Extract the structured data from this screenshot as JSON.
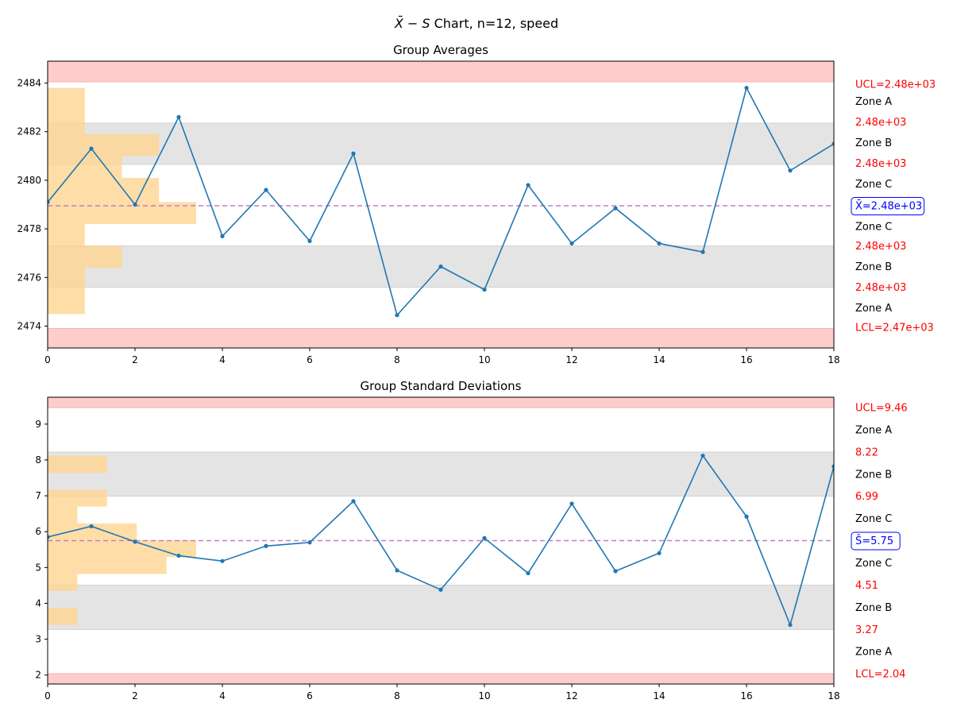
{
  "figure": {
    "title_prefix": "X̄ − S",
    "title_suffix": " Chart, n=12, speed"
  },
  "colors": {
    "line": "#1f77b4",
    "center": "#c080c0",
    "limit_band": "#ffcccc",
    "zone_b_band": "#e4e4e4",
    "hist": "#ffd591",
    "limit_text": "#ff0000",
    "center_text": "#0000ff"
  },
  "chart_data": [
    {
      "type": "line",
      "title": "Group Averages",
      "xlim": [
        0,
        18
      ],
      "ylim": [
        2473.1,
        2484.9
      ],
      "xticks": [
        0,
        2,
        4,
        6,
        8,
        10,
        12,
        14,
        16,
        18
      ],
      "yticks": [
        2474,
        2476,
        2478,
        2480,
        2482,
        2484
      ],
      "x": [
        0,
        1,
        2,
        3,
        4,
        5,
        6,
        7,
        8,
        9,
        10,
        11,
        12,
        13,
        14,
        15,
        16,
        17,
        18
      ],
      "values": [
        2479.1,
        2481.3,
        2479.0,
        2482.6,
        2477.7,
        2479.6,
        2477.5,
        2481.1,
        2474.45,
        2476.45,
        2475.5,
        2479.8,
        2477.4,
        2478.85,
        2477.4,
        2477.05,
        2483.8,
        2480.4,
        2481.5
      ],
      "center": 2478.95,
      "limits": [
        2473.9,
        2475.6,
        2477.3,
        2478.95,
        2480.65,
        2482.35,
        2484.05
      ],
      "histogram": [
        {
          "y0": 2474.5,
          "y1": 2476.4,
          "count": 1
        },
        {
          "y0": 2476.4,
          "y1": 2477.3,
          "count": 2
        },
        {
          "y0": 2477.3,
          "y1": 2478.2,
          "count": 1
        },
        {
          "y0": 2478.2,
          "y1": 2479.1,
          "count": 4
        },
        {
          "y0": 2479.1,
          "y1": 2480.1,
          "count": 3
        },
        {
          "y0": 2480.1,
          "y1": 2481.0,
          "count": 2
        },
        {
          "y0": 2481.0,
          "y1": 2481.9,
          "count": 3
        },
        {
          "y0": 2481.9,
          "y1": 2483.8,
          "count": 1
        }
      ],
      "hist_unit": 0.85,
      "right_labels": [
        {
          "text": "UCL=2.48e+03",
          "kind": "limit",
          "y": 2483.95
        },
        {
          "text": "Zone A",
          "kind": "zone",
          "y": 2483.25
        },
        {
          "text": "2.48e+03",
          "kind": "limit",
          "y": 2482.4
        },
        {
          "text": "Zone B",
          "kind": "zone",
          "y": 2481.55
        },
        {
          "text": "2.48e+03",
          "kind": "limit",
          "y": 2480.7
        },
        {
          "text": "Zone C",
          "kind": "zone",
          "y": 2479.85
        },
        {
          "text": "X̄=2.48e+03",
          "kind": "center",
          "y": 2478.95
        },
        {
          "text": "Zone C",
          "kind": "zone",
          "y": 2478.1
        },
        {
          "text": "2.48e+03",
          "kind": "limit",
          "y": 2477.3
        },
        {
          "text": "Zone B",
          "kind": "zone",
          "y": 2476.45
        },
        {
          "text": "2.48e+03",
          "kind": "limit",
          "y": 2475.6
        },
        {
          "text": "Zone A",
          "kind": "zone",
          "y": 2474.75
        },
        {
          "text": "LCL=2.47e+03",
          "kind": "limit",
          "y": 2473.95
        }
      ]
    },
    {
      "type": "line",
      "title": "Group Standard Deviations",
      "xlim": [
        0,
        18
      ],
      "ylim": [
        1.75,
        9.75
      ],
      "xticks": [
        0,
        2,
        4,
        6,
        8,
        10,
        12,
        14,
        16,
        18
      ],
      "yticks": [
        2,
        3,
        4,
        5,
        6,
        7,
        8,
        9
      ],
      "x": [
        0,
        1,
        2,
        3,
        4,
        5,
        6,
        7,
        8,
        9,
        10,
        11,
        12,
        13,
        14,
        15,
        16,
        17,
        18
      ],
      "values": [
        5.85,
        6.15,
        5.72,
        5.33,
        5.18,
        5.6,
        5.7,
        6.85,
        4.92,
        4.38,
        5.82,
        4.84,
        6.78,
        4.9,
        5.4,
        8.12,
        6.42,
        3.4,
        7.82
      ],
      "center": 5.75,
      "limits": [
        2.04,
        3.27,
        4.51,
        5.75,
        6.99,
        8.22,
        9.46
      ],
      "histogram": [
        {
          "y0": 3.4,
          "y1": 3.87,
          "count": 1
        },
        {
          "y0": 4.35,
          "y1": 4.82,
          "count": 1
        },
        {
          "y0": 4.82,
          "y1": 5.29,
          "count": 4
        },
        {
          "y0": 5.29,
          "y1": 5.76,
          "count": 5
        },
        {
          "y0": 5.76,
          "y1": 6.23,
          "count": 3
        },
        {
          "y0": 6.23,
          "y1": 6.7,
          "count": 1
        },
        {
          "y0": 6.7,
          "y1": 7.17,
          "count": 2
        },
        {
          "y0": 7.64,
          "y1": 8.12,
          "count": 2
        }
      ],
      "hist_unit": 0.68,
      "right_labels": [
        {
          "text": "UCL=9.46",
          "kind": "limit",
          "y": 9.46
        },
        {
          "text": "Zone A",
          "kind": "zone",
          "y": 8.84
        },
        {
          "text": "8.22",
          "kind": "limit",
          "y": 8.22
        },
        {
          "text": "Zone B",
          "kind": "zone",
          "y": 7.6
        },
        {
          "text": "6.99",
          "kind": "limit",
          "y": 6.99
        },
        {
          "text": "Zone C",
          "kind": "zone",
          "y": 6.37
        },
        {
          "text": "S̄=5.75",
          "kind": "center",
          "y": 5.75
        },
        {
          "text": "Zone C",
          "kind": "zone",
          "y": 5.13
        },
        {
          "text": "4.51",
          "kind": "limit",
          "y": 4.51
        },
        {
          "text": "Zone B",
          "kind": "zone",
          "y": 3.89
        },
        {
          "text": "3.27",
          "kind": "limit",
          "y": 3.27
        },
        {
          "text": "Zone A",
          "kind": "zone",
          "y": 2.66
        },
        {
          "text": "LCL=2.04",
          "kind": "limit",
          "y": 2.04
        }
      ]
    }
  ]
}
